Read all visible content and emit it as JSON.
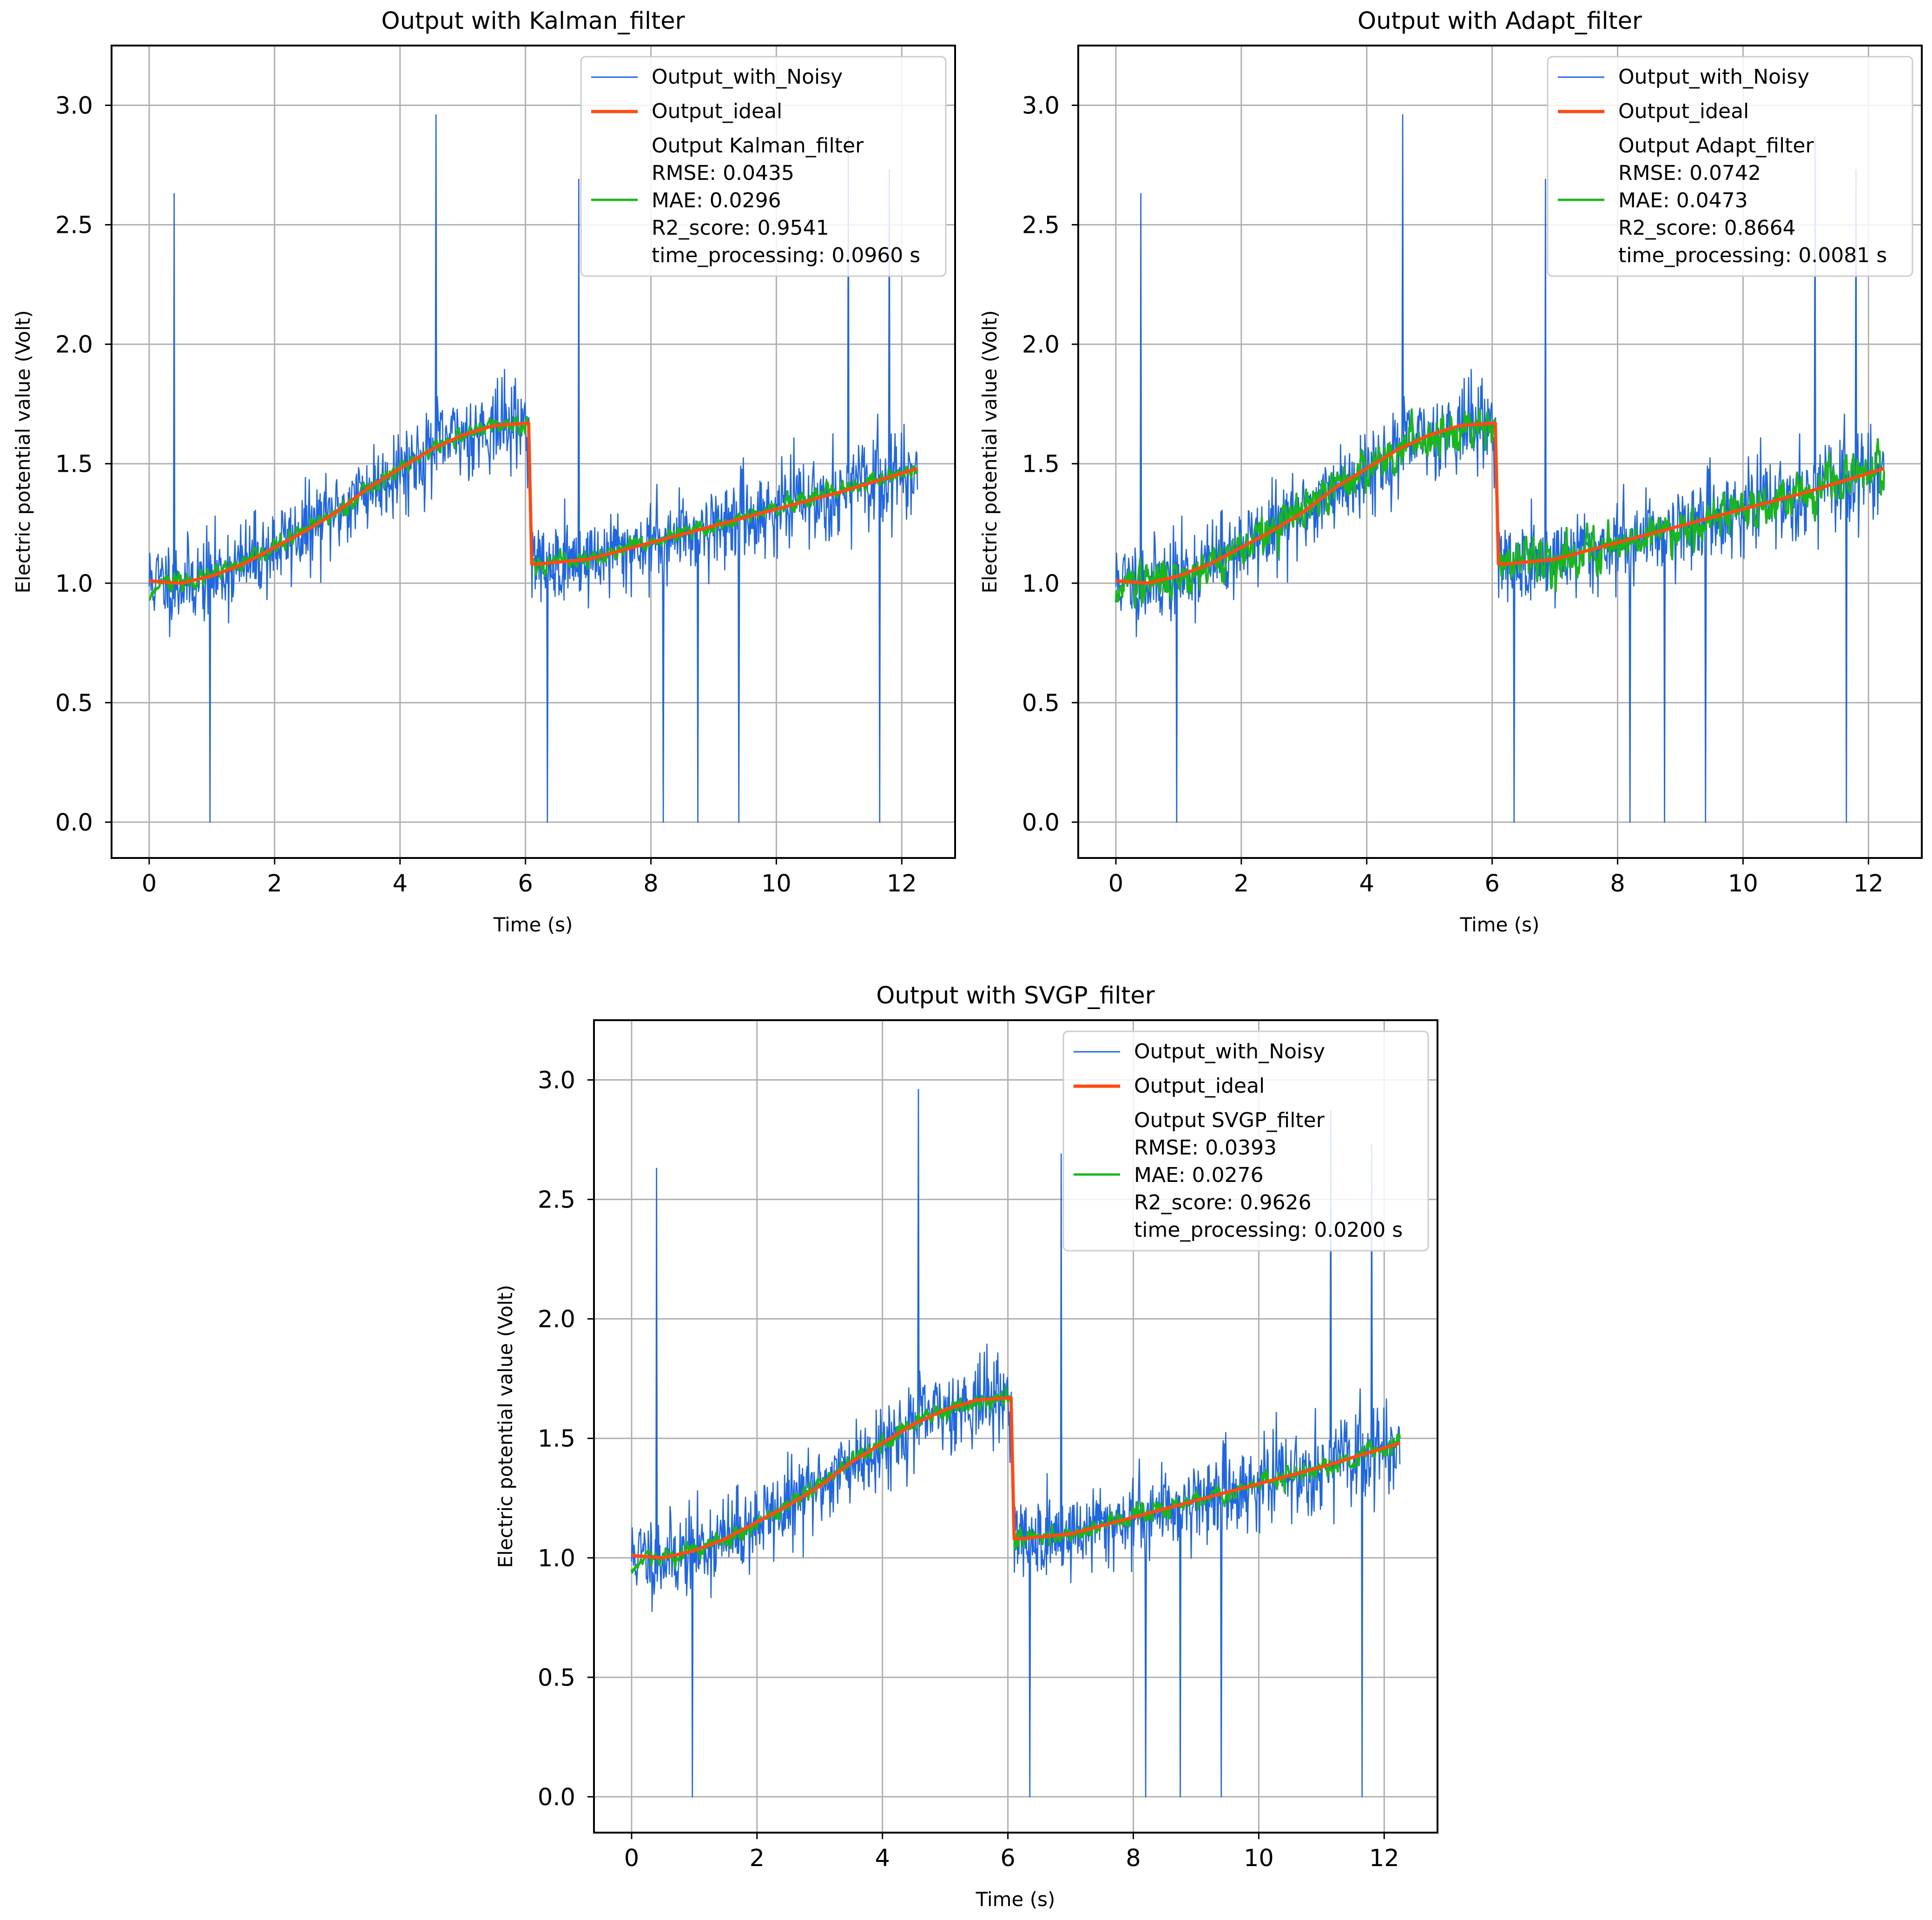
{
  "colors": {
    "noisy": "#1f66e5",
    "ideal": "#ff4a12",
    "filtered": "#17b817",
    "grid": "#b0b0b0"
  },
  "chart_data": [
    {
      "type": "line",
      "title": "Output with Kalman_filter",
      "xlabel": "Time (s)",
      "ylabel": "Electric potential value (Volt)",
      "xlim": [
        -0.6,
        12.85
      ],
      "ylim": [
        -0.15,
        3.25
      ],
      "xticks": [
        0,
        2,
        4,
        6,
        8,
        10,
        12
      ],
      "xtick_labels": [
        "0",
        "2",
        "4",
        "6",
        "8",
        "10",
        "12"
      ],
      "yticks": [
        0.0,
        0.5,
        1.0,
        1.5,
        2.0,
        2.5,
        3.0
      ],
      "ytick_labels": [
        "0.0",
        "0.5",
        "1.0",
        "1.5",
        "2.0",
        "2.5",
        "3.0"
      ],
      "grid": true,
      "legend": {
        "position": "top-right",
        "noisy_label": "Output_with_Noisy",
        "ideal_label": "Output_ideal",
        "filter_lines": [
          "Output Kalman_filter",
          "RMSE: 0.0435",
          "MAE: 0.0296",
          "R2_score: 0.9541",
          "time_processing: 0.0960 s"
        ]
      },
      "filter_name": "Kalman_filter",
      "metrics": {
        "rmse": 0.0435,
        "mae": 0.0296,
        "r2_score": 0.9541,
        "time_processing_s": 0.096
      },
      "series": [
        {
          "name": "Output_with_Noisy",
          "x_range": [
            0,
            12.25
          ],
          "noise_sigma": 0.09,
          "seed": 11
        },
        {
          "name": "Output_ideal",
          "x": [
            0,
            0.5,
            1,
            1.5,
            2,
            2.5,
            3,
            3.5,
            4,
            4.5,
            5,
            5.5,
            6.05,
            6.1,
            6.2,
            7,
            8,
            9,
            10,
            11,
            12.25
          ],
          "y": [
            1.01,
            1.0,
            1.03,
            1.08,
            1.15,
            1.22,
            1.3,
            1.4,
            1.48,
            1.56,
            1.62,
            1.66,
            1.67,
            1.08,
            1.08,
            1.1,
            1.17,
            1.24,
            1.31,
            1.38,
            1.48
          ]
        },
        {
          "name": "Output Kalman_filter",
          "x_range": [
            0,
            12.25
          ],
          "noise_sigma": 0.018,
          "seed": 23
        }
      ],
      "spikes": [
        {
          "x": 0.4,
          "y": 2.63
        },
        {
          "x": 0.97,
          "y": 0.0
        },
        {
          "x": 4.57,
          "y": 2.96
        },
        {
          "x": 6.35,
          "y": 0.0
        },
        {
          "x": 6.85,
          "y": 2.69
        },
        {
          "x": 8.2,
          "y": 0.0
        },
        {
          "x": 8.75,
          "y": 0.0
        },
        {
          "x": 9.4,
          "y": 0.0
        },
        {
          "x": 11.15,
          "y": 2.87
        },
        {
          "x": 11.65,
          "y": 0.0
        },
        {
          "x": 11.8,
          "y": 2.73
        }
      ]
    },
    {
      "type": "line",
      "title": "Output with Adapt_filter",
      "xlabel": "Time (s)",
      "ylabel": "Electric potential value (Volt)",
      "xlim": [
        -0.6,
        12.85
      ],
      "ylim": [
        -0.15,
        3.25
      ],
      "xticks": [
        0,
        2,
        4,
        6,
        8,
        10,
        12
      ],
      "xtick_labels": [
        "0",
        "2",
        "4",
        "6",
        "8",
        "10",
        "12"
      ],
      "yticks": [
        0.0,
        0.5,
        1.0,
        1.5,
        2.0,
        2.5,
        3.0
      ],
      "ytick_labels": [
        "0.0",
        "0.5",
        "1.0",
        "1.5",
        "2.0",
        "2.5",
        "3.0"
      ],
      "grid": true,
      "legend": {
        "position": "top-right",
        "noisy_label": "Output_with_Noisy",
        "ideal_label": "Output_ideal",
        "filter_lines": [
          "Output Adapt_filter",
          "RMSE: 0.0742",
          "MAE: 0.0473",
          "R2_score: 0.8664",
          "time_processing: 0.0081 s"
        ]
      },
      "filter_name": "Adapt_filter",
      "metrics": {
        "rmse": 0.0742,
        "mae": 0.0473,
        "r2_score": 0.8664,
        "time_processing_s": 0.0081
      },
      "series": [
        {
          "name": "Output_with_Noisy",
          "x_range": [
            0,
            12.25
          ],
          "noise_sigma": 0.09,
          "seed": 11
        },
        {
          "name": "Output_ideal",
          "x": [
            0,
            0.5,
            1,
            1.5,
            2,
            2.5,
            3,
            3.5,
            4,
            4.5,
            5,
            5.5,
            6.05,
            6.1,
            6.2,
            7,
            8,
            9,
            10,
            11,
            12.25
          ],
          "y": [
            1.01,
            1.0,
            1.03,
            1.08,
            1.15,
            1.22,
            1.3,
            1.4,
            1.48,
            1.56,
            1.62,
            1.66,
            1.67,
            1.08,
            1.08,
            1.1,
            1.17,
            1.24,
            1.31,
            1.38,
            1.48
          ]
        },
        {
          "name": "Output Adapt_filter",
          "x_range": [
            0,
            12.25
          ],
          "noise_sigma": 0.045,
          "seed": 37
        }
      ],
      "spikes": [
        {
          "x": 0.4,
          "y": 2.63
        },
        {
          "x": 0.97,
          "y": 0.0
        },
        {
          "x": 4.57,
          "y": 2.96
        },
        {
          "x": 6.35,
          "y": 0.0
        },
        {
          "x": 6.85,
          "y": 2.69
        },
        {
          "x": 8.2,
          "y": 0.0
        },
        {
          "x": 8.75,
          "y": 0.0
        },
        {
          "x": 9.4,
          "y": 0.0
        },
        {
          "x": 11.15,
          "y": 2.87
        },
        {
          "x": 11.65,
          "y": 0.0
        },
        {
          "x": 11.8,
          "y": 2.73
        }
      ]
    },
    {
      "type": "line",
      "title": "Output with SVGP_filter",
      "xlabel": "Time (s)",
      "ylabel": "Electric potential value (Volt)",
      "xlim": [
        -0.6,
        12.85
      ],
      "ylim": [
        -0.15,
        3.25
      ],
      "xticks": [
        0,
        2,
        4,
        6,
        8,
        10,
        12
      ],
      "xtick_labels": [
        "0",
        "2",
        "4",
        "6",
        "8",
        "10",
        "12"
      ],
      "yticks": [
        0.0,
        0.5,
        1.0,
        1.5,
        2.0,
        2.5,
        3.0
      ],
      "ytick_labels": [
        "0.0",
        "0.5",
        "1.0",
        "1.5",
        "2.0",
        "2.5",
        "3.0"
      ],
      "grid": true,
      "legend": {
        "position": "top-right",
        "noisy_label": "Output_with_Noisy",
        "ideal_label": "Output_ideal",
        "filter_lines": [
          "Output SVGP_filter",
          "RMSE: 0.0393",
          "MAE: 0.0276",
          "R2_score: 0.9626",
          "time_processing: 0.0200 s"
        ]
      },
      "filter_name": "SVGP_filter",
      "metrics": {
        "rmse": 0.0393,
        "mae": 0.0276,
        "r2_score": 0.9626,
        "time_processing_s": 0.02
      },
      "series": [
        {
          "name": "Output_with_Noisy",
          "x_range": [
            0,
            12.25
          ],
          "noise_sigma": 0.09,
          "seed": 11
        },
        {
          "name": "Output_ideal",
          "x": [
            0,
            0.5,
            1,
            1.5,
            2,
            2.5,
            3,
            3.5,
            4,
            4.5,
            5,
            5.5,
            6.05,
            6.1,
            6.2,
            7,
            8,
            9,
            10,
            11,
            12.25
          ],
          "y": [
            1.01,
            1.0,
            1.03,
            1.08,
            1.15,
            1.22,
            1.3,
            1.4,
            1.48,
            1.56,
            1.62,
            1.66,
            1.67,
            1.08,
            1.08,
            1.1,
            1.17,
            1.24,
            1.31,
            1.38,
            1.48
          ]
        },
        {
          "name": "Output SVGP_filter",
          "x_range": [
            0,
            12.25
          ],
          "noise_sigma": 0.02,
          "seed": 53
        }
      ],
      "spikes": [
        {
          "x": 0.4,
          "y": 2.63
        },
        {
          "x": 0.97,
          "y": 0.0
        },
        {
          "x": 4.57,
          "y": 2.96
        },
        {
          "x": 6.35,
          "y": 0.0
        },
        {
          "x": 6.85,
          "y": 2.69
        },
        {
          "x": 8.2,
          "y": 0.0
        },
        {
          "x": 8.75,
          "y": 0.0
        },
        {
          "x": 9.4,
          "y": 0.0
        },
        {
          "x": 11.15,
          "y": 2.87
        },
        {
          "x": 11.65,
          "y": 0.0
        },
        {
          "x": 11.8,
          "y": 2.73
        }
      ]
    }
  ]
}
